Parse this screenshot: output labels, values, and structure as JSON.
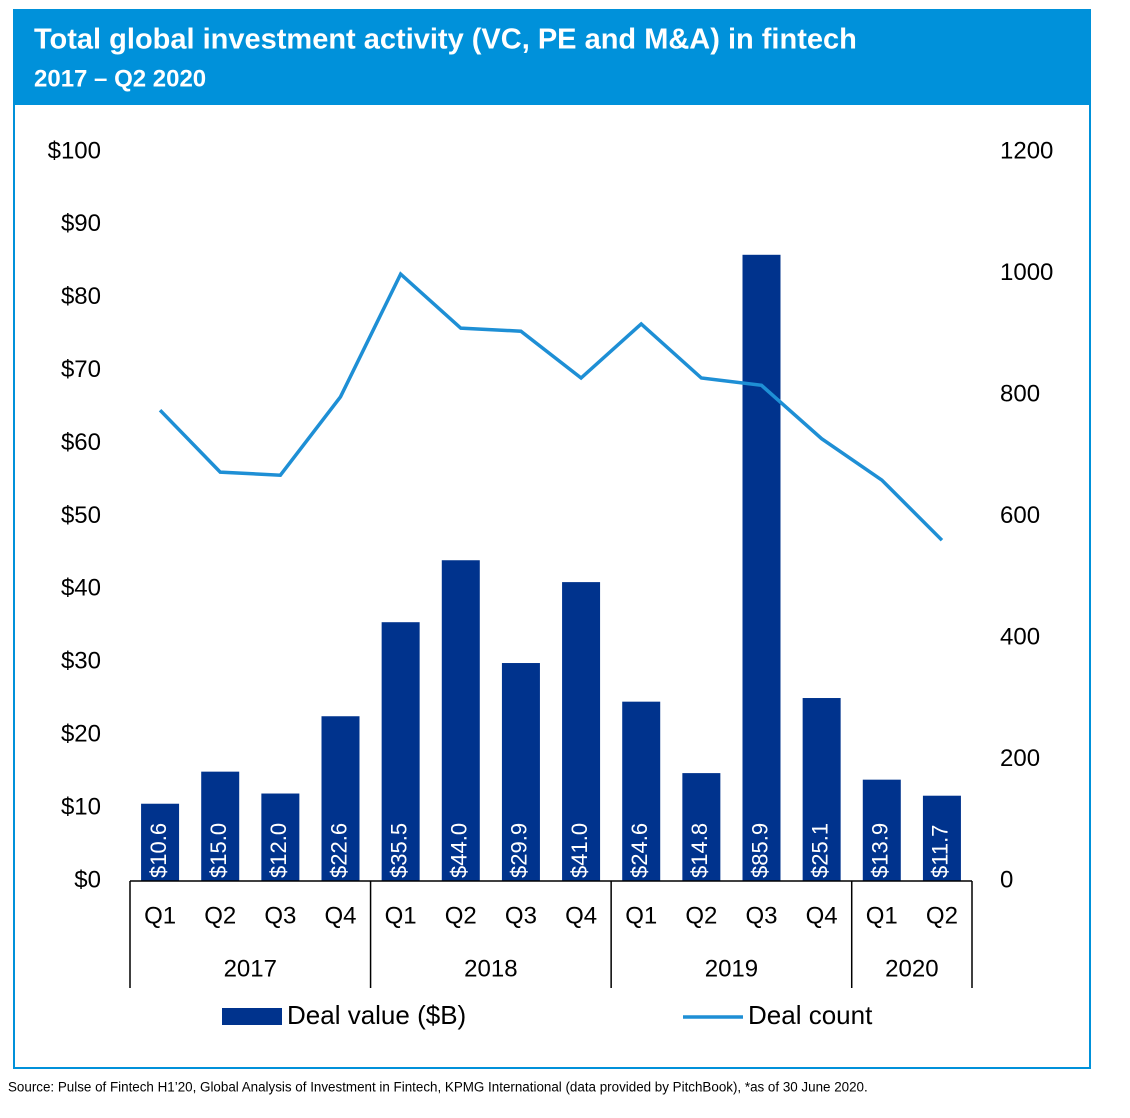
{
  "chart_data": {
    "type": "bar_line",
    "title": "Total global investment activity (VC, PE and M&A) in fintech",
    "subtitle": "2017 – Q2 2020",
    "categories": [
      "Q1",
      "Q2",
      "Q3",
      "Q4",
      "Q1",
      "Q2",
      "Q3",
      "Q4",
      "Q1",
      "Q2",
      "Q3",
      "Q4",
      "Q1",
      "Q2"
    ],
    "years": [
      "2017",
      "2018",
      "2019",
      "2020"
    ],
    "series": [
      {
        "name": "Deal value ($B)",
        "type": "bar",
        "color": "#00338D",
        "values": [
          10.6,
          15.0,
          12.0,
          22.6,
          35.5,
          44.0,
          29.9,
          41.0,
          24.6,
          14.8,
          85.9,
          25.1,
          13.9,
          11.7
        ],
        "value_labels": [
          "$10.6",
          "$15.0",
          "$12.0",
          "$22.6",
          "$35.5",
          "$44.0",
          "$29.9",
          "$41.0",
          "$24.6",
          "$14.8",
          "$85.9",
          "$25.1",
          "$13.9",
          "$11.7"
        ]
      },
      {
        "name": "Deal count",
        "type": "line",
        "color": "#1E8FD5",
        "axis": "y2",
        "values": [
          775,
          673,
          668,
          797,
          999,
          910,
          905,
          828,
          917,
          828,
          816,
          728,
          660,
          561
        ]
      }
    ],
    "ylim": [
      0,
      100
    ],
    "yticks": [
      {
        "value": 0,
        "label": "$0"
      },
      {
        "value": 10,
        "label": "$10"
      },
      {
        "value": 20,
        "label": "$20"
      },
      {
        "value": 30,
        "label": "$30"
      },
      {
        "value": 40,
        "label": "$40"
      },
      {
        "value": 50,
        "label": "$50"
      },
      {
        "value": 60,
        "label": "$60"
      },
      {
        "value": 70,
        "label": "$70"
      },
      {
        "value": 80,
        "label": "$80"
      },
      {
        "value": 90,
        "label": "$90"
      },
      {
        "value": 100,
        "label": "$100"
      }
    ],
    "y2lim": [
      0,
      1200
    ],
    "y2ticks": [
      0,
      200,
      400,
      600,
      800,
      1000,
      1200
    ],
    "grid": false,
    "legend": "bottom",
    "source": "Source: Pulse of Fintech H1’20, Global Analysis of Investment in Fintech, KPMG International (data provided by PitchBook), *as of 30 June 2020."
  }
}
